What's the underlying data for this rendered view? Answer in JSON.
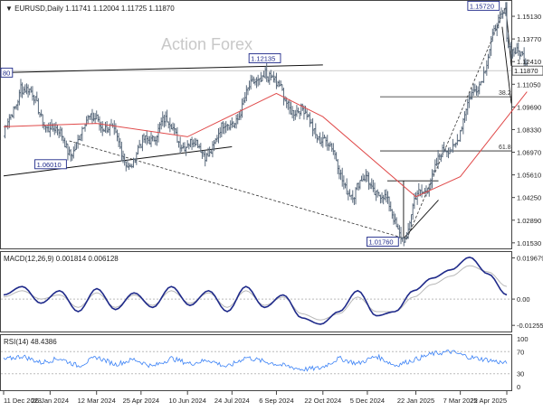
{
  "header": {
    "symbol_line": "EURUSD,Daily  1.11741 1.12004 1.11725 1.11870",
    "watermark": "Action Forex"
  },
  "price_panel": {
    "y_ticks": [
      "1.15130",
      "1.13770",
      "1.12410",
      "1.11050",
      "1.09690",
      "1.08330",
      "1.06970",
      "1.05610",
      "1.04250",
      "1.02890",
      "1.01530"
    ],
    "current_price": "1.11870",
    "annotations": {
      "high_1": "1.12135",
      "low_1": "1.06010",
      "low_2": "1.01760",
      "high_2": "1.15720",
      "left_edge": "80",
      "fib_382": "38.2",
      "fib_618": "61.8"
    }
  },
  "macd_panel": {
    "label": "MACD(12,26,9) 0.001814 0.006128",
    "y_ticks": [
      "0.019679",
      "0.00",
      "-0.012552"
    ]
  },
  "rsi_panel": {
    "label": "RSI(14) 48.4386",
    "y_ticks": [
      "100",
      "70",
      "30",
      "0"
    ]
  },
  "x_ticks": [
    "11 Dec 2023",
    "26 Jan 2024",
    "12 Mar 2024",
    "25 Apr 2024",
    "10 Jun 2024",
    "24 Jul 2024",
    "6 Sep 2024",
    "22 Oct 2024",
    "5 Dec 2024",
    "22 Jan 2025",
    "7 Mar 2025",
    "22 Apr 2025"
  ],
  "colors": {
    "price_bars": "#5b6b7d",
    "sma": "#e04a4a",
    "macd_line": "#1f2a8a",
    "signal_line": "#b8b8b8",
    "rsi_line": "#3b82f6",
    "annotation_box": "#1f2a8a"
  },
  "chart_data": [
    {
      "type": "candlestick",
      "title": "EURUSD,Daily",
      "series": [
        {
          "name": "EURUSD",
          "values": [
            {
              "date": "11 Dec 2023",
              "close": 1.078
            },
            {
              "date": "28 Dec 2023",
              "close": 1.111
            },
            {
              "date": "26 Jan 2024",
              "close": 1.085
            },
            {
              "date": "14 Feb 2024",
              "close": 1.071
            },
            {
              "date": "12 Mar 2024",
              "close": 1.093
            },
            {
              "date": "16 Apr 2024",
              "close": 1.062
            },
            {
              "date": "25 Apr 2024",
              "close": 1.072
            },
            {
              "date": "15 May 2024",
              "close": 1.088
            },
            {
              "date": "10 Jun 2024",
              "close": 1.075
            },
            {
              "date": "26 Jun 2024",
              "close": 1.069
            },
            {
              "date": "24 Jul 2024",
              "close": 1.088
            },
            {
              "date": "26 Aug 2024",
              "close": 1.1201
            },
            {
              "date": "6 Sep 2024",
              "close": 1.108
            },
            {
              "date": "22 Oct 2024",
              "close": 1.079
            },
            {
              "date": "22 Nov 2024",
              "close": 1.042
            },
            {
              "date": "5 Dec 2024",
              "close": 1.056
            },
            {
              "date": "13 Jan 2025",
              "close": 1.0176
            },
            {
              "date": "22 Jan 2025",
              "close": 1.041
            },
            {
              "date": "7 Mar 2025",
              "close": 1.083
            },
            {
              "date": "21 Apr 2025",
              "close": 1.157
            },
            {
              "date": "22 Apr 2025",
              "close": 1.14
            },
            {
              "date": "12 May 2025",
              "close": 1.1187
            }
          ]
        },
        {
          "name": "SMA",
          "values": [
            {
              "date": "11 Dec 2023",
              "close": 1.085
            },
            {
              "date": "12 Mar 2024",
              "close": 1.087
            },
            {
              "date": "10 Jun 2024",
              "close": 1.079
            },
            {
              "date": "6 Sep 2024",
              "close": 1.105
            },
            {
              "date": "22 Oct 2024",
              "close": 1.091
            },
            {
              "date": "22 Jan 2025",
              "close": 1.043
            },
            {
              "date": "7 Mar 2025",
              "close": 1.055
            },
            {
              "date": "12 May 2025",
              "close": 1.106
            }
          ]
        }
      ],
      "ylim": [
        1.0125,
        1.16
      ],
      "lines": [
        {
          "name": "resistance",
          "from": {
            "date": "11 Dec 2023",
            "value": 1.1175
          },
          "to": {
            "date": "22 Oct 2024",
            "value": 1.1221
          }
        },
        {
          "name": "support",
          "from": {
            "date": "11 Dec 2023",
            "value": 1.0555
          },
          "to": {
            "date": "24 Jul 2024",
            "value": 1.073
          }
        },
        {
          "name": "fib_382",
          "value": 1.103
        },
        {
          "name": "fib_618",
          "value": 1.0705
        }
      ]
    },
    {
      "type": "line",
      "title": "MACD(12,26,9) 0.001814 0.006128",
      "ylim": [
        -0.0155,
        0.0225
      ],
      "series": [
        {
          "name": "MACD",
          "values": [
            0.002,
            0.006,
            -0.002,
            0.004,
            -0.006,
            0.005,
            -0.005,
            0.003,
            -0.004,
            0.006,
            -0.003,
            0.004,
            -0.006,
            0.006,
            -0.004,
            0.002,
            -0.009,
            -0.012,
            -0.006,
            0.004,
            -0.008,
            -0.006,
            0.004,
            0.01,
            0.014,
            0.02,
            0.012,
            0.002
          ]
        },
        {
          "name": "Signal",
          "values": [
            0.001,
            0.004,
            0.0,
            0.002,
            -0.004,
            0.003,
            -0.004,
            0.002,
            -0.003,
            0.004,
            -0.002,
            0.003,
            -0.004,
            0.004,
            -0.003,
            0.001,
            -0.007,
            -0.01,
            -0.007,
            0.001,
            -0.006,
            -0.006,
            0.001,
            0.007,
            0.011,
            0.016,
            0.013,
            0.006
          ]
        }
      ]
    },
    {
      "type": "line",
      "title": "RSI(14) 48.4386",
      "ylim": [
        0,
        100
      ],
      "series": [
        {
          "name": "RSI",
          "values": [
            55,
            62,
            50,
            58,
            44,
            60,
            47,
            56,
            43,
            58,
            48,
            55,
            42,
            60,
            52,
            45,
            38,
            40,
            58,
            48,
            62,
            45,
            55,
            66,
            70,
            60,
            55,
            48.4
          ]
        }
      ]
    }
  ]
}
